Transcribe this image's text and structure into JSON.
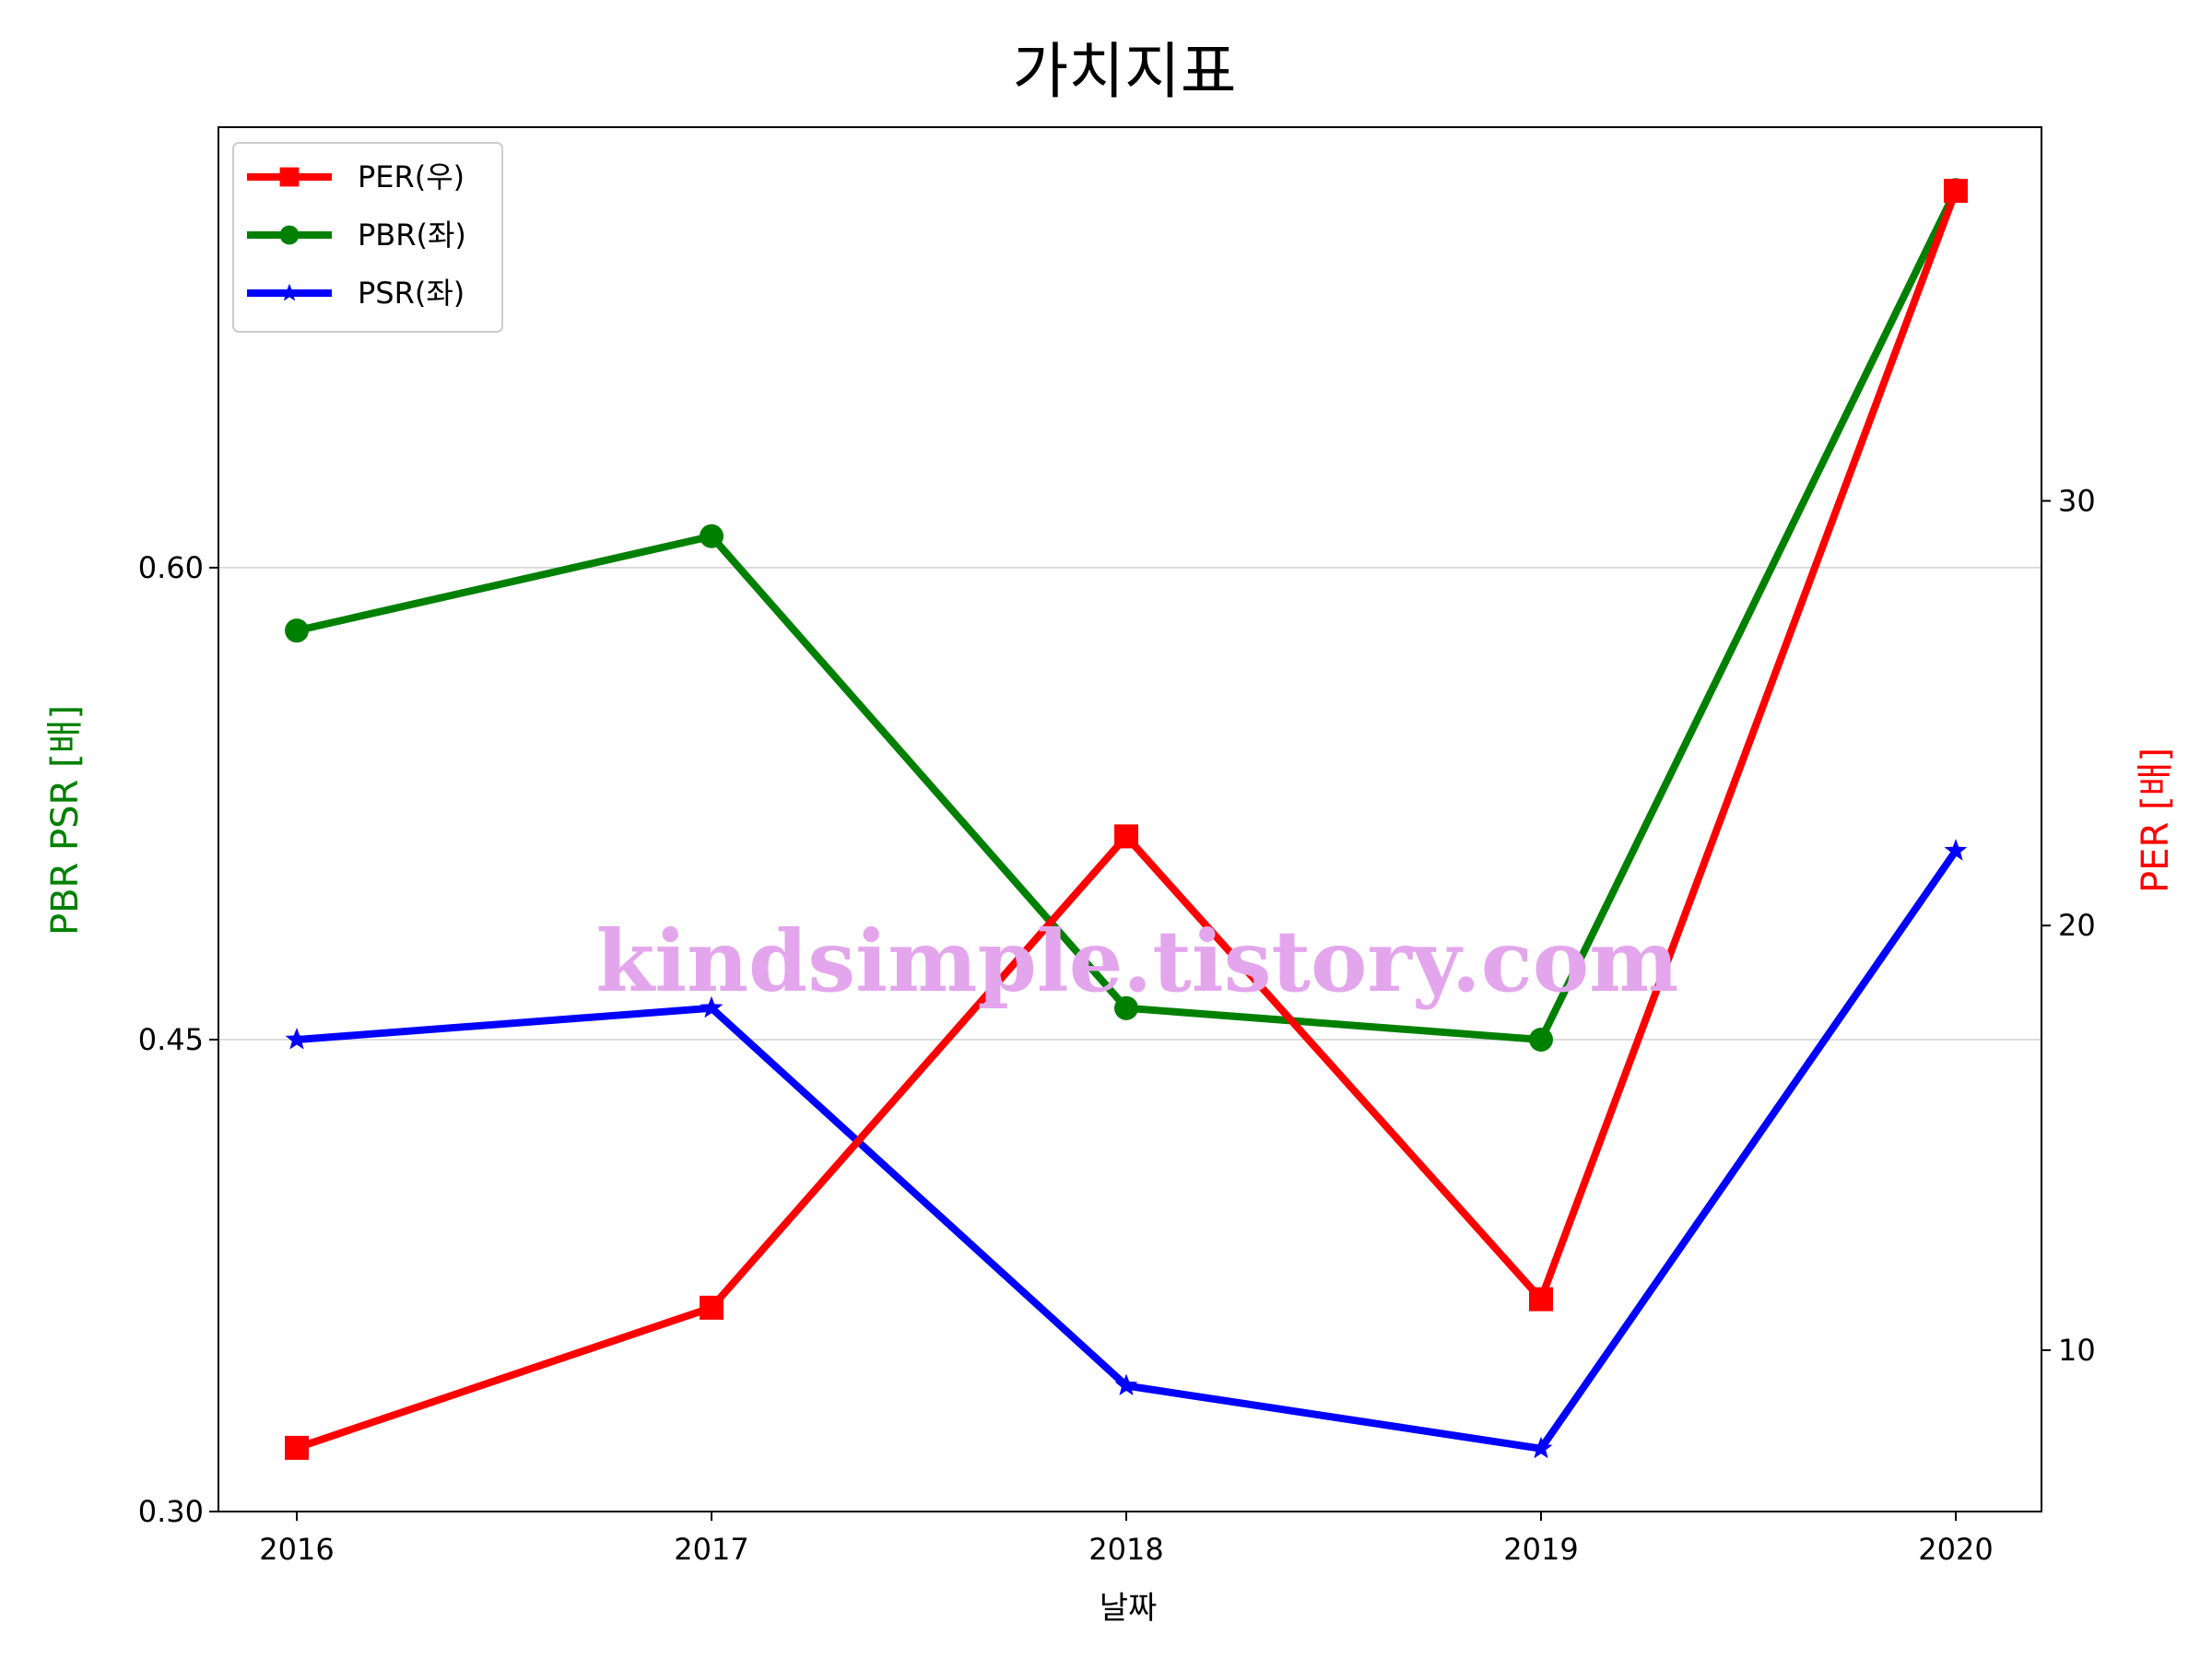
{
  "chart_data": {
    "type": "line",
    "title": "가치지표",
    "xlabel": "날짜",
    "ylabel_left": "PBR PSR [배]",
    "ylabel_right": "PER [배]",
    "ylabel_left_color": "#008000",
    "ylabel_right_color": "#ff0000",
    "categories": [
      "2016",
      "2017",
      "2018",
      "2019",
      "2020"
    ],
    "y_left_lim": [
      0.3,
      0.74
    ],
    "y_left_ticks": [
      "0.30",
      "0.45",
      "0.60"
    ],
    "y_right_lim": [
      6.2,
      38.8
    ],
    "y_right_ticks": [
      "10",
      "20",
      "30"
    ],
    "grid": "horizontal at left-axis ticks",
    "legend_position": "upper-left",
    "series": [
      {
        "name": "PER(우)",
        "axis": "right",
        "color": "#ff0000",
        "marker": "square",
        "values": [
          7.7,
          11.0,
          22.1,
          11.2,
          37.3
        ]
      },
      {
        "name": "PBR(좌)",
        "axis": "left",
        "color": "#008000",
        "marker": "circle",
        "values": [
          0.58,
          0.61,
          0.46,
          0.45,
          0.72
        ]
      },
      {
        "name": "PSR(좌)",
        "axis": "left",
        "color": "#0000ff",
        "marker": "star",
        "values": [
          0.45,
          0.46,
          0.34,
          0.32,
          0.51
        ]
      }
    ],
    "watermark": "kindsimple.tistory.com"
  }
}
